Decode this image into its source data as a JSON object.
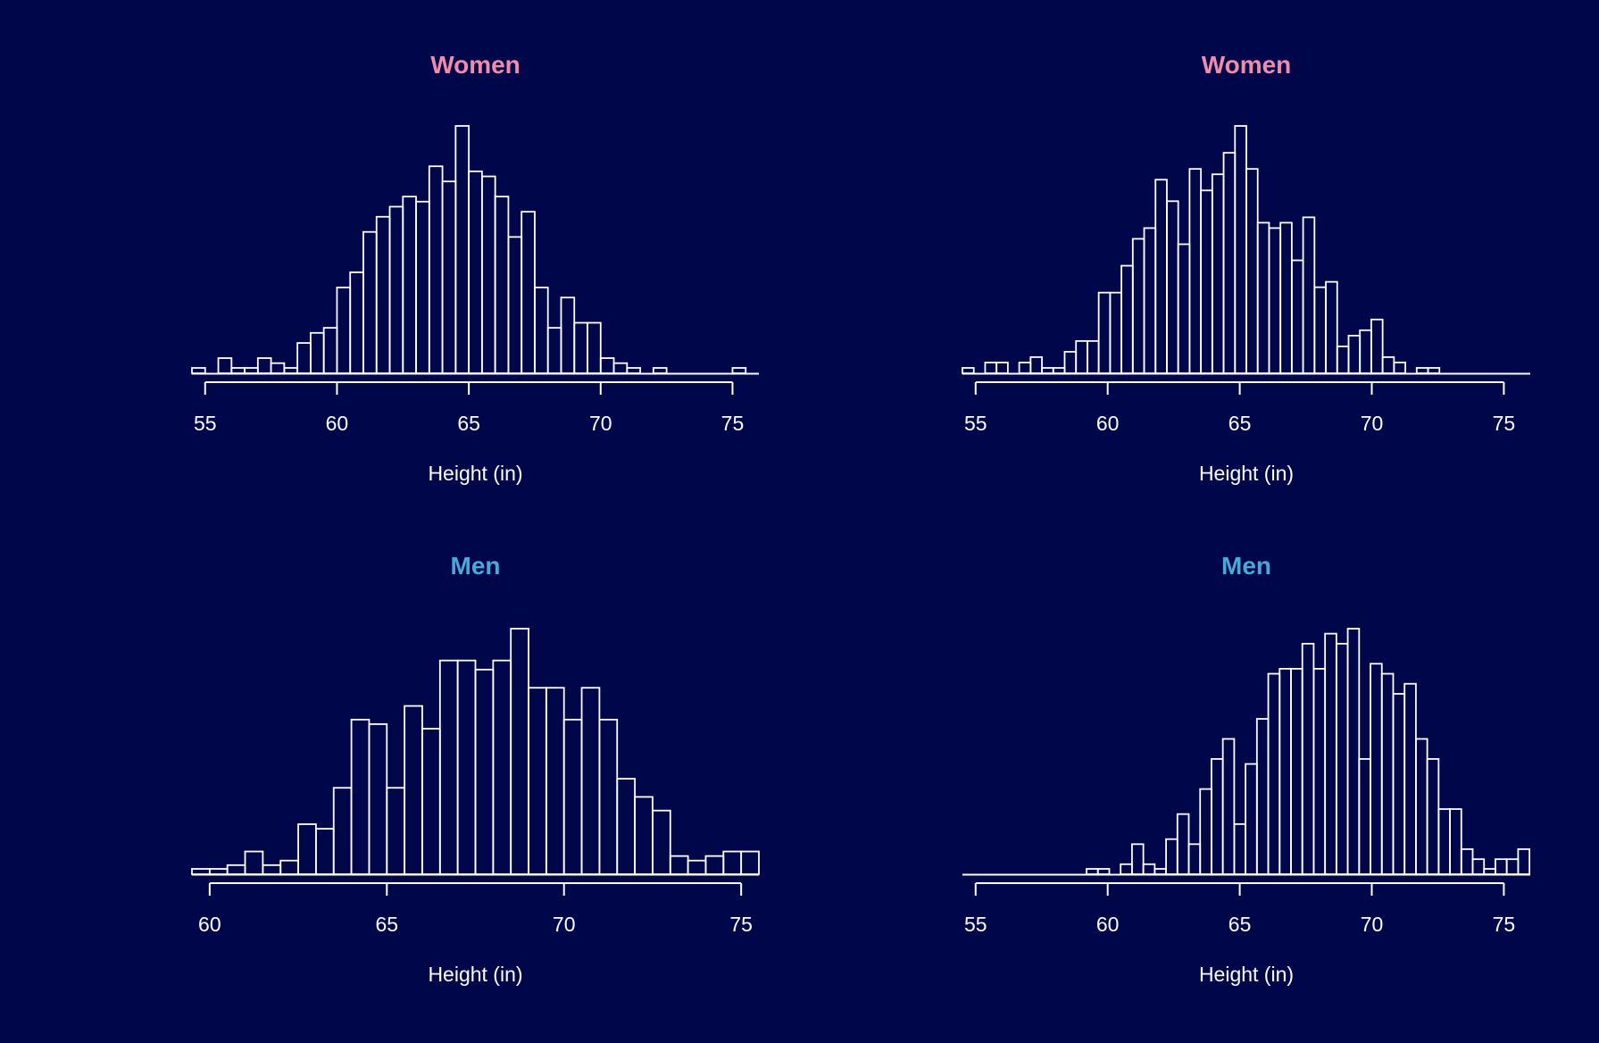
{
  "colors": {
    "background": "#00064a",
    "bars": "#ffffff",
    "women_title": "#f08caa",
    "men_title": "#4aa8d8"
  },
  "chart_data": [
    {
      "type": "bar",
      "title": "Women",
      "title_color": "#f08caa",
      "xlabel": "Height (in)",
      "ylabel": "",
      "xlim": [
        54.5,
        76
      ],
      "xticks": [
        55,
        60,
        65,
        70,
        75
      ],
      "bin_width": 0.5,
      "bin_start": 54.5,
      "counts": [
        1,
        0,
        3,
        1,
        1,
        3,
        2,
        1,
        6,
        8,
        9,
        17,
        20,
        28,
        31,
        33,
        35,
        34,
        41,
        38,
        49,
        40,
        39,
        35,
        27,
        32,
        17,
        9,
        15,
        10,
        10,
        3,
        2,
        1,
        0,
        1,
        0,
        0,
        0,
        0,
        0,
        1
      ]
    },
    {
      "type": "bar",
      "title": "Women",
      "title_color": "#f08caa",
      "xlabel": "Height (in)",
      "ylabel": "",
      "xlim": [
        54.5,
        76
      ],
      "xticks": [
        55,
        60,
        65,
        70,
        75
      ],
      "bin_width": 0.43,
      "bin_start": 54.5,
      "counts": [
        1,
        0,
        2,
        2,
        0,
        2,
        3,
        1,
        1,
        4,
        6,
        6,
        15,
        15,
        20,
        25,
        27,
        36,
        32,
        24,
        38,
        34,
        37,
        41,
        46,
        38,
        28,
        27,
        28,
        21,
        29,
        16,
        17,
        5,
        7,
        8,
        10,
        3,
        2,
        0,
        1,
        1,
        0,
        0,
        0,
        0,
        0,
        0,
        0,
        0,
        1
      ]
    },
    {
      "type": "bar",
      "title": "Men",
      "title_color": "#4aa8d8",
      "xlabel": "Height (in)",
      "ylabel": "",
      "xlim": [
        59.5,
        75.5
      ],
      "xticks": [
        60,
        65,
        70,
        75
      ],
      "bin_width": 0.5,
      "bin_start": 59.5,
      "counts": [
        1,
        1,
        2,
        5,
        2,
        3,
        11,
        10,
        19,
        34,
        33,
        19,
        37,
        32,
        47,
        47,
        45,
        47,
        54,
        41,
        41,
        34,
        41,
        34,
        21,
        17,
        14,
        4,
        3,
        4,
        5,
        5
      ]
    },
    {
      "type": "bar",
      "title": "Men",
      "title_color": "#4aa8d8",
      "xlabel": "Height (in)",
      "ylabel": "",
      "xlim": [
        54.5,
        76
      ],
      "xticks": [
        55,
        60,
        65,
        70,
        75
      ],
      "bin_width": 0.43,
      "bin_start": 59.2,
      "counts": [
        1,
        1,
        0,
        2,
        6,
        2,
        1,
        7,
        12,
        6,
        17,
        23,
        27,
        10,
        22,
        31,
        40,
        41,
        41,
        46,
        41,
        48,
        46,
        49,
        23,
        42,
        40,
        36,
        38,
        27,
        23,
        13,
        13,
        5,
        3,
        1,
        3,
        3,
        5
      ]
    }
  ]
}
